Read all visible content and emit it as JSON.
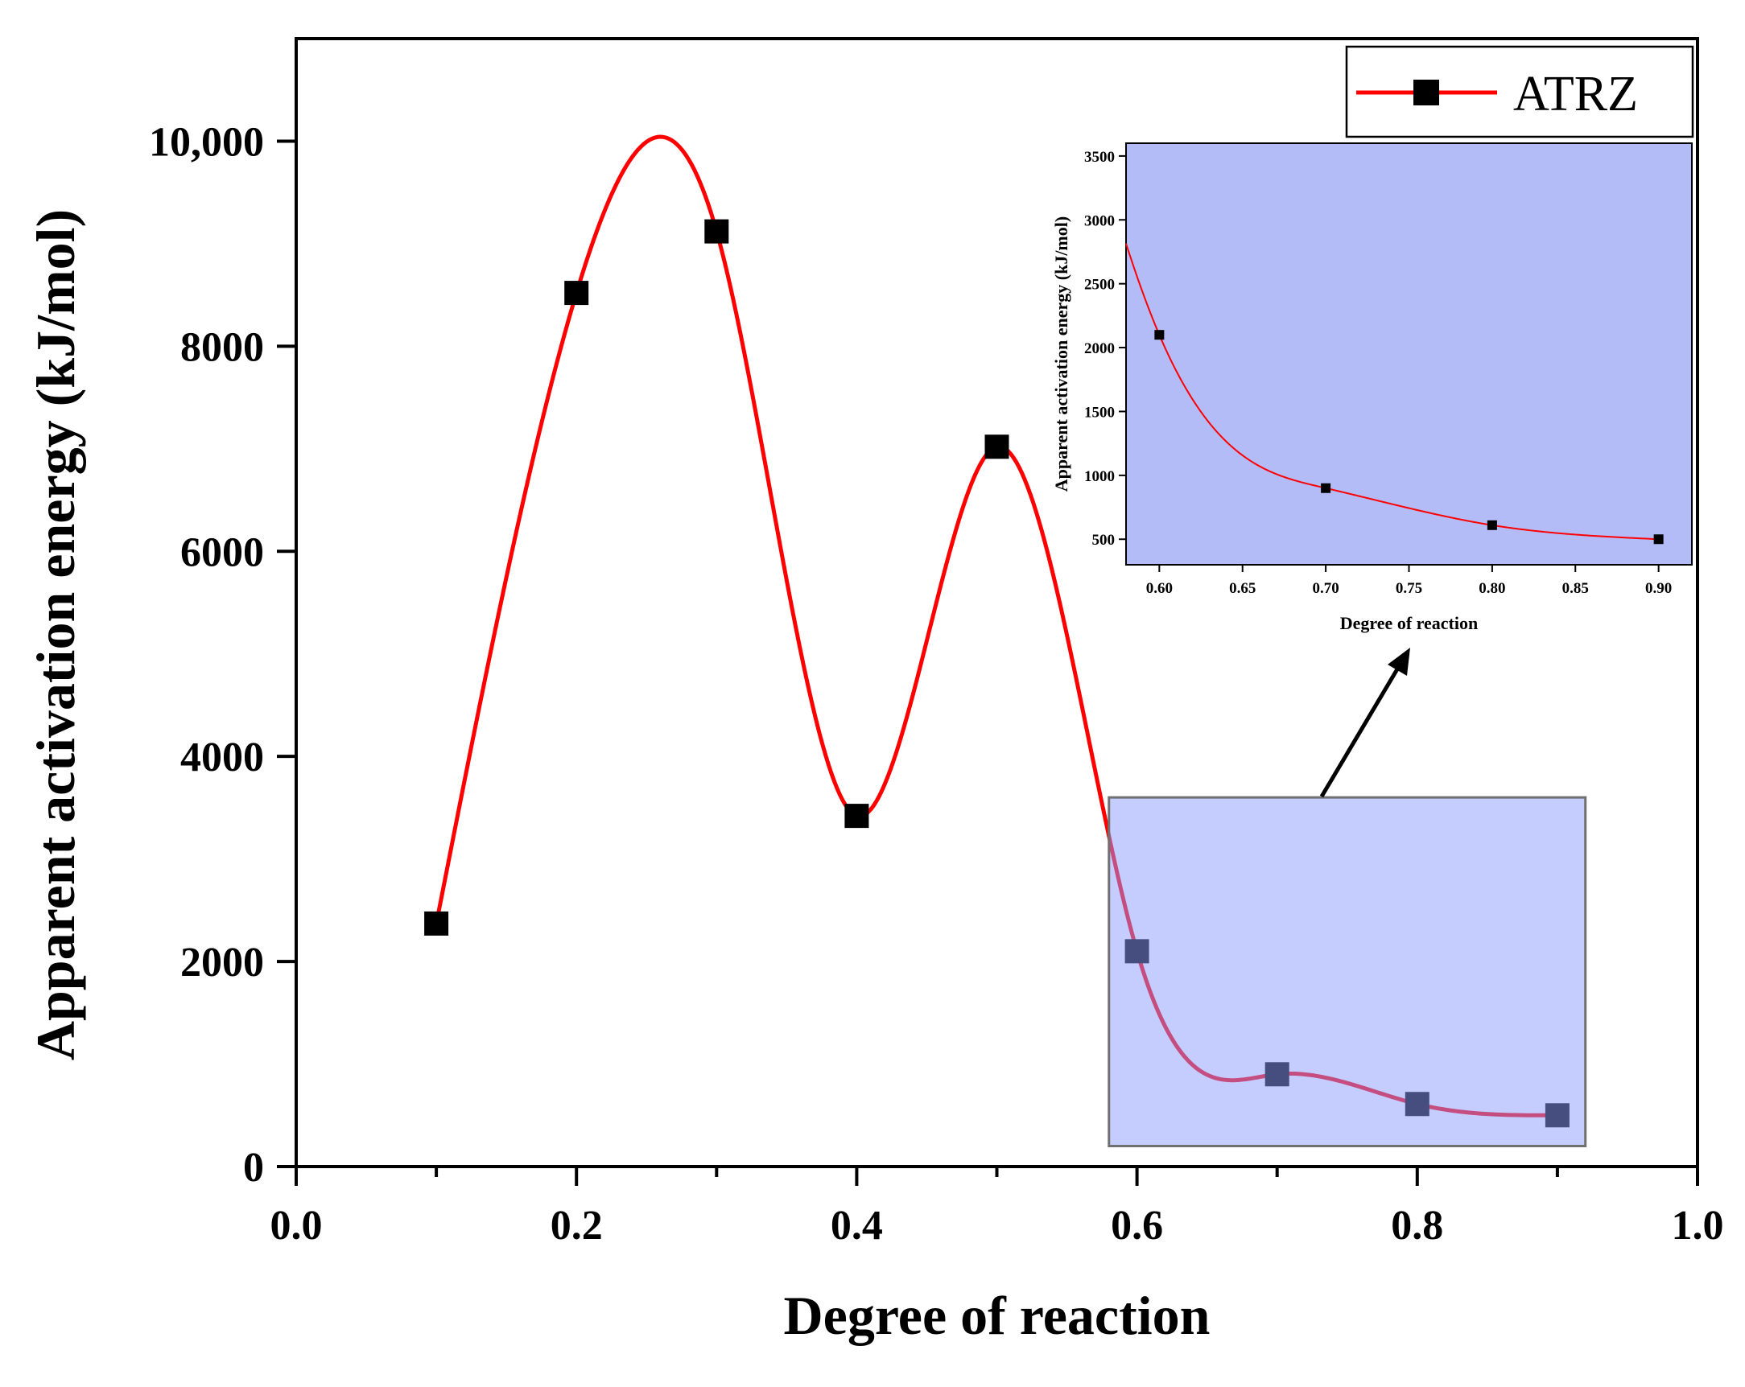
{
  "chart_data": {
    "type": "line",
    "title": "",
    "xlabel": "Degree of reaction",
    "ylabel": "Apparent activation energy (kJ/mol)",
    "xlim": [
      0.0,
      1.0
    ],
    "ylim": [
      0,
      11000
    ],
    "x_ticks": [
      0.0,
      0.2,
      0.4,
      0.6,
      0.8,
      1.0
    ],
    "x_tick_labels": [
      "0.0",
      "0.2",
      "0.4",
      "0.6",
      "0.8",
      "1.0"
    ],
    "y_ticks": [
      0,
      2000,
      4000,
      6000,
      8000,
      10000
    ],
    "y_tick_labels": [
      "0",
      "2000",
      "4000",
      "6000",
      "8000",
      "10,000"
    ],
    "series": [
      {
        "name": "ATRZ",
        "x": [
          0.1,
          0.2,
          0.3,
          0.4,
          0.5,
          0.6,
          0.7,
          0.8,
          0.9
        ],
        "values": [
          2370,
          8520,
          9120,
          3420,
          7020,
          2100,
          900,
          610,
          500
        ],
        "line_color": "#ff0000",
        "marker_color": "#000000",
        "marker": "square"
      }
    ],
    "legend": {
      "label": "ATRZ",
      "position": "top-right"
    },
    "zoom_region": {
      "x_range": [
        0.58,
        0.92
      ],
      "y_range": [
        200,
        3600
      ],
      "fill": "#8c9bff"
    },
    "inset": {
      "xlabel": "Degree of reaction",
      "ylabel": "Apparent activation energy (kJ/mol)",
      "xlim": [
        0.58,
        0.92
      ],
      "ylim": [
        300,
        3600
      ],
      "x_ticks": [
        0.6,
        0.65,
        0.7,
        0.75,
        0.8,
        0.85,
        0.9
      ],
      "x_tick_labels": [
        "0.60",
        "0.65",
        "0.70",
        "0.75",
        "0.80",
        "0.85",
        "0.90"
      ],
      "y_ticks": [
        500,
        1000,
        1500,
        2000,
        2500,
        3000,
        3500
      ],
      "y_tick_labels": [
        "500",
        "1000",
        "1500",
        "2000",
        "2500",
        "3000",
        "3500"
      ],
      "x": [
        0.6,
        0.7,
        0.8,
        0.9
      ],
      "values": [
        2100,
        900,
        610,
        500
      ],
      "background": "#b3bcf7"
    }
  }
}
